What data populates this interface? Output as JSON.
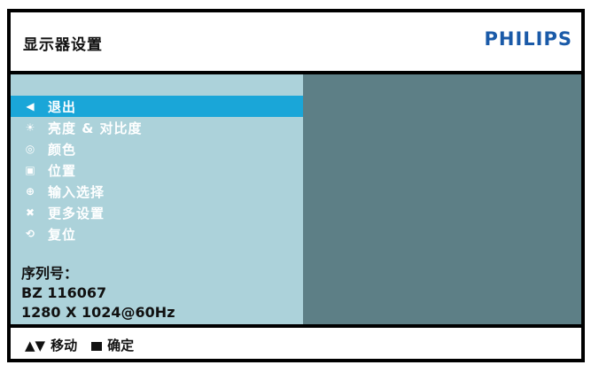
{
  "header": {
    "title": "显示器设置",
    "brand": "PHILIPS"
  },
  "menu": {
    "items": [
      {
        "icon": "◀",
        "label": "退出",
        "active": true
      },
      {
        "icon": "☀",
        "label": "亮度 & 对比度",
        "active": false
      },
      {
        "icon": "◎",
        "label": "颜色",
        "active": false
      },
      {
        "icon": "▣",
        "label": "位置",
        "active": false
      },
      {
        "icon": "⊕",
        "label": "输入选择",
        "active": false
      },
      {
        "icon": "✖",
        "label": "更多设置",
        "active": false
      },
      {
        "icon": "⟲",
        "label": "复位",
        "active": false
      }
    ]
  },
  "info": {
    "serial_label": "序列号：",
    "serial_value": "BZ 116067",
    "mode": "1280 X 1024@60Hz"
  },
  "footer": {
    "arrows": "▲▼",
    "move": "移动",
    "confirm": "确定"
  },
  "colors": {
    "brand": "#1a5aa8",
    "panel_left": "#acd2da",
    "panel_right": "#5d7f86",
    "selected": "#1aa6d8"
  }
}
